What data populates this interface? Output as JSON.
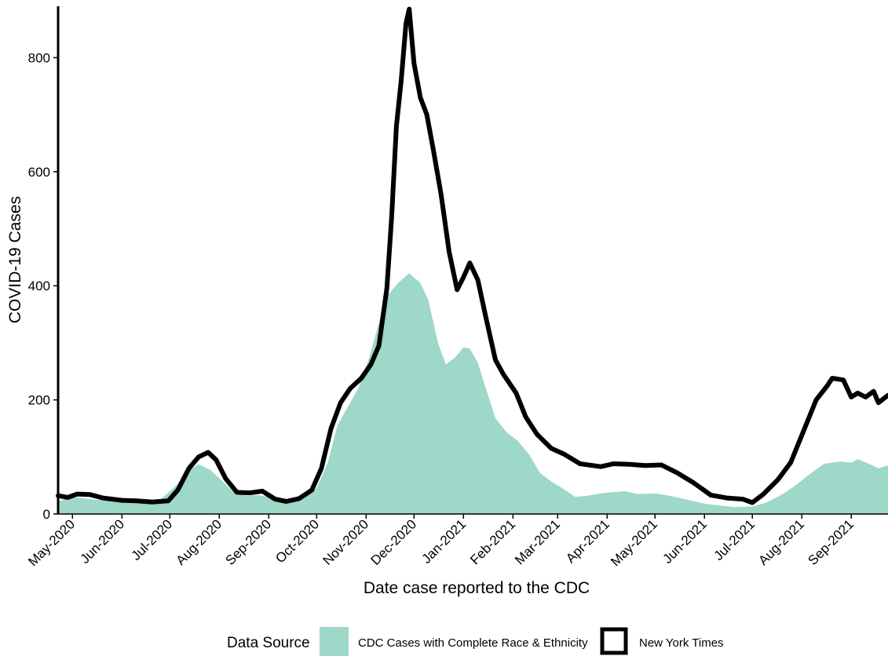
{
  "chart_data": {
    "type": "area",
    "xlabel": "Date case reported to the CDC",
    "ylabel": "COVID-19 Cases",
    "ylim": [
      0,
      890
    ],
    "yticks": [
      0,
      200,
      400,
      600,
      800
    ],
    "x_range": [
      "2020-04-22",
      "2021-09-24"
    ],
    "x_ticks": [
      {
        "date": "2020-05-01",
        "label": "May-2020"
      },
      {
        "date": "2020-06-01",
        "label": "Jun-2020"
      },
      {
        "date": "2020-07-01",
        "label": "Jul-2020"
      },
      {
        "date": "2020-08-01",
        "label": "Aug-2020"
      },
      {
        "date": "2020-09-01",
        "label": "Sep-2020"
      },
      {
        "date": "2020-10-01",
        "label": "Oct-2020"
      },
      {
        "date": "2020-11-01",
        "label": "Nov-2020"
      },
      {
        "date": "2020-12-01",
        "label": "Dec-2020"
      },
      {
        "date": "2021-01-01",
        "label": "Jan-2021"
      },
      {
        "date": "2021-02-01",
        "label": "Feb-2021"
      },
      {
        "date": "2021-03-01",
        "label": "Mar-2021"
      },
      {
        "date": "2021-04-01",
        "label": "Apr-2021"
      },
      {
        "date": "2021-05-01",
        "label": "May-2021"
      },
      {
        "date": "2021-06-01",
        "label": "Jun-2021"
      },
      {
        "date": "2021-07-01",
        "label": "Jul-2021"
      },
      {
        "date": "2021-08-01",
        "label": "Aug-2021"
      },
      {
        "date": "2021-09-01",
        "label": "Sep-2021"
      }
    ],
    "grid": false,
    "legend_position": "bottom",
    "series": [
      {
        "name": "CDC Cases with Complete Race & Ethnicity",
        "kind": "area",
        "color": "#9dd8c8",
        "points": [
          [
            "2020-04-22",
            22
          ],
          [
            "2020-05-01",
            30
          ],
          [
            "2020-05-15",
            25
          ],
          [
            "2020-06-01",
            23
          ],
          [
            "2020-06-15",
            20
          ],
          [
            "2020-06-25",
            25
          ],
          [
            "2020-07-05",
            50
          ],
          [
            "2020-07-12",
            75
          ],
          [
            "2020-07-19",
            87
          ],
          [
            "2020-07-26",
            78
          ],
          [
            "2020-08-02",
            60
          ],
          [
            "2020-08-10",
            38
          ],
          [
            "2020-08-18",
            32
          ],
          [
            "2020-08-25",
            33
          ],
          [
            "2020-09-01",
            30
          ],
          [
            "2020-09-08",
            24
          ],
          [
            "2020-09-15",
            22
          ],
          [
            "2020-09-22",
            27
          ],
          [
            "2020-10-01",
            45
          ],
          [
            "2020-10-08",
            90
          ],
          [
            "2020-10-14",
            155
          ],
          [
            "2020-10-20",
            185
          ],
          [
            "2020-10-27",
            220
          ],
          [
            "2020-11-03",
            275
          ],
          [
            "2020-11-10",
            345
          ],
          [
            "2020-11-15",
            385
          ],
          [
            "2020-11-21",
            405
          ],
          [
            "2020-11-28",
            422
          ],
          [
            "2020-12-05",
            405
          ],
          [
            "2020-12-10",
            375
          ],
          [
            "2020-12-16",
            300
          ],
          [
            "2020-12-21",
            262
          ],
          [
            "2020-12-27",
            275
          ],
          [
            "2021-01-01",
            292
          ],
          [
            "2021-01-05",
            290
          ],
          [
            "2021-01-10",
            265
          ],
          [
            "2021-01-15",
            220
          ],
          [
            "2021-01-21",
            168
          ],
          [
            "2021-01-28",
            143
          ],
          [
            "2021-02-04",
            128
          ],
          [
            "2021-02-11",
            105
          ],
          [
            "2021-02-18",
            72
          ],
          [
            "2021-02-25",
            57
          ],
          [
            "2021-03-04",
            45
          ],
          [
            "2021-03-12",
            30
          ],
          [
            "2021-03-20",
            32
          ],
          [
            "2021-03-28",
            36
          ],
          [
            "2021-04-04",
            38
          ],
          [
            "2021-04-12",
            40
          ],
          [
            "2021-04-20",
            35
          ],
          [
            "2021-05-01",
            36
          ],
          [
            "2021-05-10",
            32
          ],
          [
            "2021-05-20",
            26
          ],
          [
            "2021-06-01",
            18
          ],
          [
            "2021-06-10",
            15
          ],
          [
            "2021-06-20",
            12
          ],
          [
            "2021-07-01",
            13
          ],
          [
            "2021-07-10",
            20
          ],
          [
            "2021-07-20",
            35
          ],
          [
            "2021-07-28",
            50
          ],
          [
            "2021-08-05",
            68
          ],
          [
            "2021-08-15",
            88
          ],
          [
            "2021-08-25",
            92
          ],
          [
            "2021-09-01",
            90
          ],
          [
            "2021-09-05",
            96
          ],
          [
            "2021-09-12",
            88
          ],
          [
            "2021-09-18",
            80
          ],
          [
            "2021-09-24",
            85
          ]
        ]
      },
      {
        "name": "New York Times",
        "kind": "line",
        "color": "#000000",
        "points": [
          [
            "2020-04-22",
            32
          ],
          [
            "2020-04-28",
            29
          ],
          [
            "2020-05-04",
            35
          ],
          [
            "2020-05-12",
            34
          ],
          [
            "2020-05-20",
            28
          ],
          [
            "2020-06-01",
            24
          ],
          [
            "2020-06-10",
            23
          ],
          [
            "2020-06-20",
            21
          ],
          [
            "2020-06-30",
            23
          ],
          [
            "2020-07-06",
            42
          ],
          [
            "2020-07-13",
            80
          ],
          [
            "2020-07-19",
            100
          ],
          [
            "2020-07-25",
            108
          ],
          [
            "2020-07-30",
            95
          ],
          [
            "2020-08-05",
            62
          ],
          [
            "2020-08-12",
            38
          ],
          [
            "2020-08-20",
            37
          ],
          [
            "2020-08-28",
            40
          ],
          [
            "2020-09-05",
            26
          ],
          [
            "2020-09-12",
            22
          ],
          [
            "2020-09-20",
            27
          ],
          [
            "2020-09-28",
            42
          ],
          [
            "2020-10-04",
            80
          ],
          [
            "2020-10-10",
            150
          ],
          [
            "2020-10-16",
            195
          ],
          [
            "2020-10-22",
            220
          ],
          [
            "2020-10-29",
            238
          ],
          [
            "2020-11-04",
            262
          ],
          [
            "2020-11-09",
            295
          ],
          [
            "2020-11-14",
            395
          ],
          [
            "2020-11-17",
            520
          ],
          [
            "2020-11-20",
            680
          ],
          [
            "2020-11-23",
            760
          ],
          [
            "2020-11-26",
            860
          ],
          [
            "2020-11-28",
            885
          ],
          [
            "2020-12-01",
            790
          ],
          [
            "2020-12-05",
            730
          ],
          [
            "2020-12-09",
            700
          ],
          [
            "2020-12-13",
            640
          ],
          [
            "2020-12-18",
            560
          ],
          [
            "2020-12-23",
            460
          ],
          [
            "2020-12-28",
            393
          ],
          [
            "2021-01-01",
            415
          ],
          [
            "2021-01-05",
            440
          ],
          [
            "2021-01-10",
            410
          ],
          [
            "2021-01-15",
            345
          ],
          [
            "2021-01-21",
            270
          ],
          [
            "2021-01-26",
            245
          ],
          [
            "2021-02-03",
            212
          ],
          [
            "2021-02-09",
            170
          ],
          [
            "2021-02-16",
            140
          ],
          [
            "2021-02-25",
            115
          ],
          [
            "2021-03-05",
            105
          ],
          [
            "2021-03-15",
            88
          ],
          [
            "2021-03-28",
            83
          ],
          [
            "2021-04-05",
            88
          ],
          [
            "2021-04-15",
            87
          ],
          [
            "2021-04-25",
            85
          ],
          [
            "2021-05-05",
            86
          ],
          [
            "2021-05-15",
            72
          ],
          [
            "2021-05-25",
            55
          ],
          [
            "2021-06-05",
            33
          ],
          [
            "2021-06-15",
            28
          ],
          [
            "2021-06-25",
            26
          ],
          [
            "2021-07-01",
            20
          ],
          [
            "2021-07-08",
            35
          ],
          [
            "2021-07-17",
            60
          ],
          [
            "2021-07-25",
            90
          ],
          [
            "2021-08-02",
            145
          ],
          [
            "2021-08-10",
            200
          ],
          [
            "2021-08-17",
            225
          ],
          [
            "2021-08-20",
            238
          ],
          [
            "2021-08-27",
            235
          ],
          [
            "2021-09-01",
            205
          ],
          [
            "2021-09-05",
            212
          ],
          [
            "2021-09-10",
            205
          ],
          [
            "2021-09-15",
            215
          ],
          [
            "2021-09-18",
            195
          ],
          [
            "2021-09-24",
            208
          ]
        ]
      }
    ]
  },
  "legend": {
    "title": "Data Source",
    "items": [
      {
        "label": "CDC Cases with Complete Race & Ethnicity",
        "swatch": "filled",
        "color": "#9dd8c8"
      },
      {
        "label": "New York Times",
        "swatch": "outline",
        "color": "#000000"
      }
    ]
  }
}
